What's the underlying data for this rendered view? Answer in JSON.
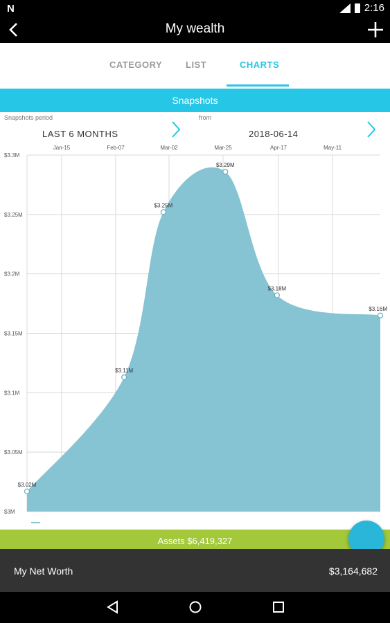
{
  "status_bar": {
    "time": "2:16",
    "icons": [
      "n-icon",
      "signal-icon",
      "battery-icon"
    ]
  },
  "app_bar": {
    "title": "My wealth",
    "back_icon": "chevron-left-icon",
    "add_icon": "plus-icon"
  },
  "tabs": [
    {
      "label": "CATEGORY",
      "active": false
    },
    {
      "label": "LIST",
      "active": false
    },
    {
      "label": "CHARTS",
      "active": true
    }
  ],
  "snapshots": {
    "header": "Snapshots",
    "period_label": "Snapshots period",
    "period_value": "LAST 6 MONTHS",
    "from_label": "from",
    "from_value": "2018-06-14"
  },
  "chart_data": {
    "type": "area",
    "x_ticks": [
      "Jan-15",
      "Feb-07",
      "Mar-02",
      "Mar-25",
      "Apr-17",
      "May-11"
    ],
    "y_ticks": [
      "$3.3M",
      "$3.25M",
      "$3.2M",
      "$3.15M",
      "$3.1M",
      "$3.05M",
      "$3M"
    ],
    "y_tick_values": [
      3.3,
      3.25,
      3.2,
      3.15,
      3.1,
      3.05,
      3.0
    ],
    "ylim": [
      3.0,
      3.3
    ],
    "points": [
      {
        "x": "2017-12-25",
        "y": 3.017,
        "label": "$3.02M"
      },
      {
        "x": "2018-02-10",
        "y": 3.113,
        "label": "$3.11M"
      },
      {
        "x": "2018-03-01",
        "y": 3.252,
        "label": "$3.25M"
      },
      {
        "x": "2018-03-31",
        "y": 3.286,
        "label": "$3.29M"
      },
      {
        "x": "2018-04-25",
        "y": 3.182,
        "label": "$3.18M"
      },
      {
        "x": "2018-06-14",
        "y": 3.165,
        "label": "$3.16M"
      }
    ],
    "fill_color": "#86c3d3",
    "grid": true
  },
  "assets": {
    "label": "Assets $6,419,327"
  },
  "net_worth": {
    "label": "My Net Worth",
    "value": "$3,164,682"
  },
  "colors": {
    "accent": "#26c6e6",
    "assets_green": "#a3c93a",
    "footer_dark": "#333333"
  },
  "nav": {
    "icons": [
      "back-triangle-icon",
      "home-circle-icon",
      "recents-square-icon"
    ]
  }
}
